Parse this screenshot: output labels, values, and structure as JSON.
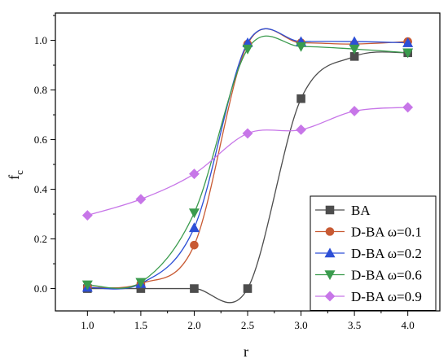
{
  "chart_data": {
    "type": "line",
    "xlabel": "r",
    "ylabel": "f",
    "ylabel_subscript": "c",
    "xlim": [
      0.7,
      4.3
    ],
    "ylim": [
      -0.09,
      1.11
    ],
    "x_ticks": [
      "1.0",
      "1.5",
      "2.0",
      "2.5",
      "3.0",
      "3.5",
      "4.0"
    ],
    "y_ticks": [
      "0.0",
      "0.2",
      "0.4",
      "0.6",
      "0.8",
      "1.0"
    ],
    "legend_position": "bottom-right",
    "series": [
      {
        "name": "BA",
        "color": "#4d4d4d",
        "marker": "square",
        "x": [
          1.0,
          1.5,
          2.0,
          2.5,
          3.0,
          3.5,
          4.0
        ],
        "y": [
          0.0,
          0.0,
          0.0,
          0.0,
          0.765,
          0.935,
          0.95
        ]
      },
      {
        "name": "D-BA ω=0.1",
        "color": "#c85a33",
        "marker": "circle",
        "x": [
          1.0,
          1.5,
          2.0,
          2.5,
          3.0,
          3.5,
          4.0
        ],
        "y": [
          0.005,
          0.02,
          0.175,
          0.985,
          0.99,
          0.985,
          0.995
        ]
      },
      {
        "name": "D-BA ω=0.2",
        "color": "#2d4fd6",
        "marker": "triangle-up",
        "x": [
          1.0,
          1.5,
          2.0,
          2.5,
          3.0,
          3.5,
          4.0
        ],
        "y": [
          0.005,
          0.02,
          0.245,
          0.99,
          0.995,
          0.995,
          0.99
        ]
      },
      {
        "name": "D-BA ω=0.6",
        "color": "#3a9b4d",
        "marker": "triangle-down",
        "x": [
          1.0,
          1.5,
          2.0,
          2.5,
          3.0,
          3.5,
          4.0
        ],
        "y": [
          0.015,
          0.025,
          0.305,
          0.965,
          0.975,
          0.965,
          0.95
        ]
      },
      {
        "name": "D-BA ω=0.9",
        "color": "#c776e8",
        "marker": "diamond",
        "x": [
          1.0,
          1.5,
          2.0,
          2.5,
          3.0,
          3.5,
          4.0
        ],
        "y": [
          0.295,
          0.36,
          0.462,
          0.625,
          0.64,
          0.715,
          0.73
        ]
      }
    ]
  }
}
